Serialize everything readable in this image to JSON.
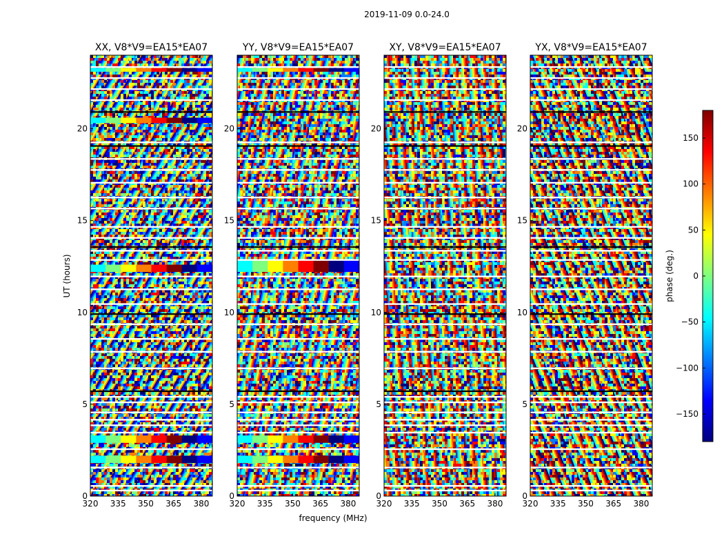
{
  "figure_title": "2019-11-09 0.0-24.0",
  "colorbar": {
    "label": "phase (deg.)",
    "range": [
      -180,
      180
    ],
    "ticks": [
      -150,
      -100,
      -50,
      0,
      50,
      100,
      150
    ],
    "tick_labels": [
      "−150",
      "−100",
      "−50",
      "0",
      "50",
      "100",
      "150"
    ],
    "colormap": "jet",
    "colors": [
      "#00007f",
      "#0000ff",
      "#007fff",
      "#00ffff",
      "#7fff7f",
      "#ffff00",
      "#ff7f00",
      "#ff0000",
      "#7f0000"
    ]
  },
  "chart_data": [
    {
      "type": "heatmap",
      "title": "XX, V8*V9=EA15*EA07",
      "xlabel": "",
      "ylabel": "UT (hours)",
      "xlim": [
        320,
        386
      ],
      "ylim": [
        0,
        24
      ],
      "xticks": [
        320,
        335,
        350,
        365,
        380
      ],
      "yticks": [
        0,
        5,
        10,
        15,
        20
      ],
      "z_quantity": "phase (deg.)"
    },
    {
      "type": "heatmap",
      "title": "YY, V8*V9=EA15*EA07",
      "xlabel": "frequency (MHz)",
      "ylabel": "",
      "xlim": [
        320,
        386
      ],
      "ylim": [
        0,
        24
      ],
      "xticks": [
        320,
        335,
        350,
        365,
        380
      ],
      "yticks": [
        0,
        5,
        10,
        15,
        20
      ],
      "z_quantity": "phase (deg.)"
    },
    {
      "type": "heatmap",
      "title": "XY, V8*V9=EA15*EA07",
      "xlabel": "",
      "ylabel": "",
      "xlim": [
        320,
        386
      ],
      "ylim": [
        0,
        24
      ],
      "xticks": [
        320,
        335,
        350,
        365,
        380
      ],
      "yticks": [
        0,
        5,
        10,
        15,
        20
      ],
      "z_quantity": "phase (deg.)"
    },
    {
      "type": "heatmap",
      "title": "YX, V8*V9=EA15*EA07",
      "xlabel": "",
      "ylabel": "",
      "xlim": [
        320,
        386
      ],
      "ylim": [
        0,
        24
      ],
      "xticks": [
        320,
        335,
        350,
        365,
        380
      ],
      "yticks": [
        0,
        5,
        10,
        15,
        20
      ],
      "z_quantity": "phase (deg.)"
    }
  ]
}
